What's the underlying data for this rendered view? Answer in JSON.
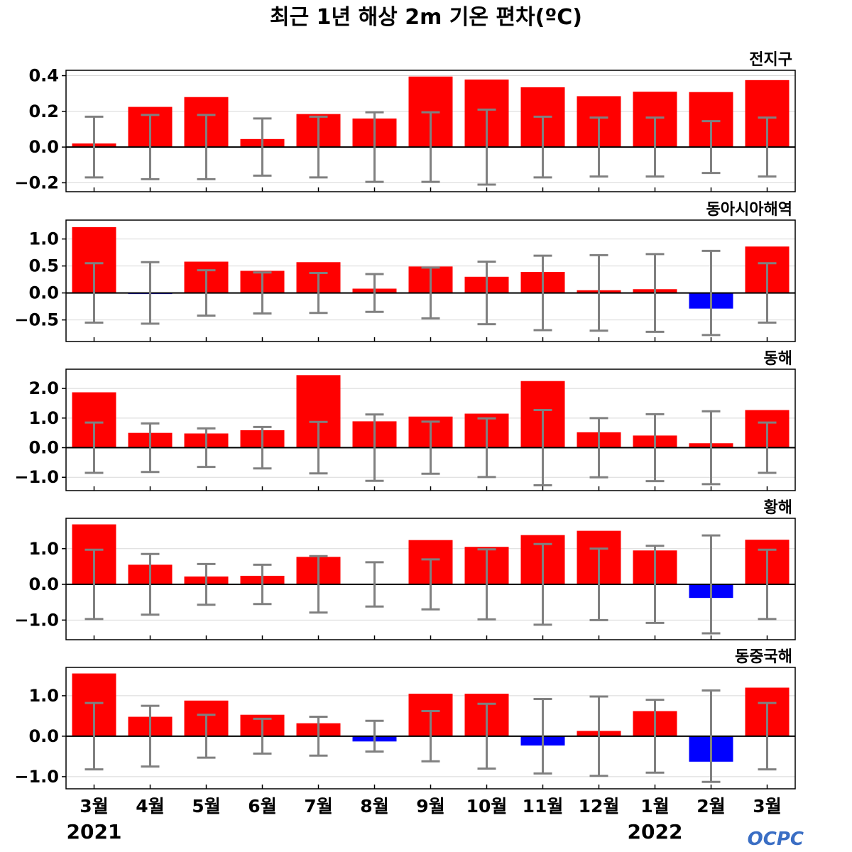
{
  "figure": {
    "title": "최근 1년 해상 2m 기온 편차(ºC)",
    "logo_text": "OCPC",
    "logo_color": "#3a6ec4",
    "year_labels": [
      {
        "label": "2021",
        "index": 0
      },
      {
        "label": "2022",
        "index": 10
      }
    ]
  },
  "chart_data": [
    {
      "type": "bar",
      "title": "전지구",
      "categories": [
        "3월",
        "4월",
        "5월",
        "6월",
        "7월",
        "8월",
        "9월",
        "10월",
        "11월",
        "12월",
        "1월",
        "2월",
        "3월"
      ],
      "values": [
        0.02,
        0.225,
        0.28,
        0.045,
        0.185,
        0.16,
        0.395,
        0.378,
        0.335,
        0.285,
        0.31,
        0.308,
        0.375
      ],
      "error_bounds": [
        0.17,
        0.18,
        0.18,
        0.16,
        0.17,
        0.195,
        0.195,
        0.21,
        0.17,
        0.165,
        0.165,
        0.145,
        0.165
      ],
      "ylim": [
        -0.25,
        0.43
      ],
      "yticks": [
        -0.2,
        0.0,
        0.2,
        0.4
      ],
      "ytick_labels": [
        "−0.2",
        "0.0",
        "0.2",
        "0.4"
      ],
      "positive_color": "#ff0000",
      "negative_color": "#0000ff",
      "errorbar_color": "#808080",
      "grid": true
    },
    {
      "type": "bar",
      "title": "동아시아해역",
      "categories": [
        "3월",
        "4월",
        "5월",
        "6월",
        "7월",
        "8월",
        "9월",
        "10월",
        "11월",
        "12월",
        "1월",
        "2월",
        "3월"
      ],
      "values": [
        1.22,
        -0.02,
        0.58,
        0.41,
        0.57,
        0.08,
        0.49,
        0.3,
        0.39,
        0.05,
        0.07,
        -0.29,
        0.86
      ],
      "error_bounds": [
        0.55,
        0.57,
        0.42,
        0.38,
        0.37,
        0.35,
        0.47,
        0.58,
        0.69,
        0.7,
        0.72,
        0.78,
        0.55
      ],
      "ylim": [
        -0.9,
        1.35
      ],
      "yticks": [
        -0.5,
        0.0,
        0.5,
        1.0
      ],
      "ytick_labels": [
        "−0.5",
        "0.0",
        "0.5",
        "1.0"
      ],
      "positive_color": "#ff0000",
      "negative_color": "#0000ff",
      "errorbar_color": "#808080",
      "grid": true
    },
    {
      "type": "bar",
      "title": "동해",
      "categories": [
        "3월",
        "4월",
        "5월",
        "6월",
        "7월",
        "8월",
        "9월",
        "10월",
        "11월",
        "12월",
        "1월",
        "2월",
        "3월"
      ],
      "values": [
        1.87,
        0.5,
        0.48,
        0.59,
        2.45,
        0.89,
        1.05,
        1.15,
        2.25,
        0.52,
        0.41,
        0.15,
        1.27
      ],
      "error_bounds": [
        0.85,
        0.82,
        0.65,
        0.7,
        0.87,
        1.12,
        0.88,
        0.99,
        1.27,
        1.0,
        1.13,
        1.23,
        0.85
      ],
      "ylim": [
        -1.45,
        2.65
      ],
      "yticks": [
        -1.0,
        0.0,
        1.0,
        2.0
      ],
      "ytick_labels": [
        "−1.0",
        "0.0",
        "1.0",
        "2.0"
      ],
      "positive_color": "#ff0000",
      "negative_color": "#0000ff",
      "errorbar_color": "#808080",
      "grid": true
    },
    {
      "type": "bar",
      "title": "황해",
      "categories": [
        "3월",
        "4월",
        "5월",
        "6월",
        "7월",
        "8월",
        "9월",
        "10월",
        "11월",
        "12월",
        "1월",
        "2월",
        "3월"
      ],
      "values": [
        1.68,
        0.55,
        0.22,
        0.24,
        0.77,
        0.02,
        1.24,
        1.05,
        1.38,
        1.5,
        0.95,
        -0.38,
        1.25
      ],
      "error_bounds": [
        0.97,
        0.85,
        0.57,
        0.55,
        0.79,
        0.62,
        0.7,
        0.98,
        1.13,
        1.0,
        1.08,
        1.37,
        0.97
      ],
      "ylim": [
        -1.55,
        1.85
      ],
      "yticks": [
        -1.0,
        0.0,
        1.0
      ],
      "ytick_labels": [
        "−1.0",
        "0.0",
        "1.0"
      ],
      "positive_color": "#ff0000",
      "negative_color": "#0000ff",
      "errorbar_color": "#808080",
      "grid": true
    },
    {
      "type": "bar",
      "title": "동중국해",
      "categories": [
        "3월",
        "4월",
        "5월",
        "6월",
        "7월",
        "8월",
        "9월",
        "10월",
        "11월",
        "12월",
        "1월",
        "2월",
        "3월"
      ],
      "values": [
        1.55,
        0.48,
        0.88,
        0.53,
        0.32,
        -0.13,
        1.05,
        1.05,
        -0.23,
        0.13,
        0.62,
        -0.63,
        1.2
      ],
      "error_bounds": [
        0.82,
        0.75,
        0.53,
        0.43,
        0.48,
        0.38,
        0.62,
        0.8,
        0.92,
        0.98,
        0.9,
        1.13,
        0.82
      ],
      "ylim": [
        -1.3,
        1.7
      ],
      "yticks": [
        -1.0,
        0.0,
        1.0
      ],
      "ytick_labels": [
        "−1.0",
        "0.0",
        "1.0"
      ],
      "positive_color": "#ff0000",
      "negative_color": "#0000ff",
      "errorbar_color": "#808080",
      "grid": true
    }
  ]
}
